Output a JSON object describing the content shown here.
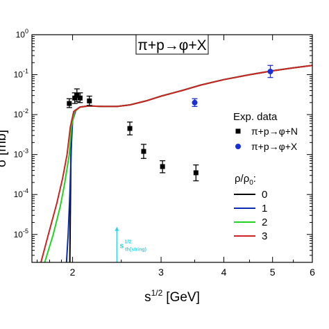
{
  "chart_data": {
    "type": "line",
    "title": "π+p→φ+X",
    "xlabel": "s",
    "xlabel_sup": "1/2",
    "xlabel_unit": "[GeV]",
    "ylabel": "σ [mb]",
    "x_scale": "log",
    "y_scale": "log",
    "xlim": [
      1.66,
      6.0
    ],
    "ylim": [
      2e-06,
      1.0
    ],
    "x_ticks": [
      {
        "value": 2,
        "label": "2"
      },
      {
        "value": 3,
        "label": "3"
      },
      {
        "value": 4,
        "label": "4"
      },
      {
        "value": 5,
        "label": "5"
      },
      {
        "value": 6,
        "label": "6"
      }
    ],
    "y_ticks": [
      {
        "value": 1e-05,
        "base": "10",
        "exp": "-5"
      },
      {
        "value": 0.0001,
        "base": "10",
        "exp": "-4"
      },
      {
        "value": 0.001,
        "base": "10",
        "exp": "-3"
      },
      {
        "value": 0.01,
        "base": "10",
        "exp": "-2"
      },
      {
        "value": 0.1,
        "base": "10",
        "exp": "-1"
      },
      {
        "value": 1,
        "base": "10",
        "exp": "0"
      }
    ],
    "grid": false,
    "legend_placement": "right",
    "legend_data_title": "Exp. data",
    "legend_model_title": "ρ/ρ",
    "legend_model_title_sub": "0",
    "legend_model_title_suffix": ":",
    "annotation": {
      "text": "s",
      "sup": "1/2",
      "sub": "th(string)",
      "x": 2.45,
      "y_from": 2e-06,
      "y_to": 1.5e-05,
      "color": "#2fd3e0"
    },
    "series": [
      {
        "name": "0",
        "color": "#000000",
        "points": [
          [
            1.975,
            2e-06
          ],
          [
            1.985,
            0.001
          ],
          [
            1.995,
            0.006
          ],
          [
            2.02,
            0.0125
          ],
          [
            2.07,
            0.0155
          ],
          [
            2.15,
            0.0165
          ],
          [
            2.3,
            0.016
          ],
          [
            2.45,
            0.016
          ],
          [
            2.6,
            0.0175
          ],
          [
            2.8,
            0.022
          ],
          [
            3.0,
            0.029
          ],
          [
            3.3,
            0.04
          ],
          [
            3.6,
            0.055
          ],
          [
            4.0,
            0.075
          ],
          [
            4.5,
            0.1
          ],
          [
            5.0,
            0.125
          ],
          [
            5.5,
            0.148
          ],
          [
            6.0,
            0.17
          ]
        ]
      },
      {
        "name": "1",
        "color": "#0a2ab0",
        "points": [
          [
            1.945,
            2e-06
          ],
          [
            1.96,
            1e-05
          ],
          [
            1.975,
            0.0001
          ],
          [
            1.99,
            0.002
          ],
          [
            2.0,
            0.007
          ],
          [
            2.03,
            0.013
          ],
          [
            2.07,
            0.0155
          ],
          [
            2.15,
            0.0165
          ],
          [
            2.3,
            0.016
          ],
          [
            2.45,
            0.016
          ],
          [
            2.6,
            0.0175
          ],
          [
            2.8,
            0.022
          ],
          [
            3.0,
            0.029
          ],
          [
            3.3,
            0.04
          ],
          [
            3.6,
            0.055
          ],
          [
            4.0,
            0.075
          ],
          [
            4.5,
            0.1
          ],
          [
            5.0,
            0.125
          ],
          [
            5.5,
            0.148
          ],
          [
            6.0,
            0.17
          ]
        ]
      },
      {
        "name": "2",
        "color": "#22d422",
        "points": [
          [
            1.76,
            2e-06
          ],
          [
            1.83,
            1e-05
          ],
          [
            1.89,
            5e-05
          ],
          [
            1.93,
            0.0002
          ],
          [
            1.97,
            0.001
          ],
          [
            1.99,
            0.005
          ],
          [
            2.02,
            0.012
          ],
          [
            2.07,
            0.0155
          ],
          [
            2.15,
            0.0165
          ],
          [
            2.3,
            0.016
          ],
          [
            2.45,
            0.016
          ],
          [
            2.6,
            0.0175
          ],
          [
            2.8,
            0.022
          ],
          [
            3.0,
            0.029
          ],
          [
            3.3,
            0.04
          ],
          [
            3.6,
            0.055
          ],
          [
            4.0,
            0.075
          ],
          [
            4.5,
            0.1
          ],
          [
            5.0,
            0.125
          ],
          [
            5.5,
            0.148
          ],
          [
            6.0,
            0.17
          ]
        ]
      },
      {
        "name": "3",
        "color": "#cc2222",
        "points": [
          [
            1.73,
            2e-06
          ],
          [
            1.79,
            1e-05
          ],
          [
            1.86,
            6e-05
          ],
          [
            1.91,
            0.00025
          ],
          [
            1.95,
            0.001
          ],
          [
            1.98,
            0.005
          ],
          [
            2.01,
            0.012
          ],
          [
            2.07,
            0.0155
          ],
          [
            2.15,
            0.0165
          ],
          [
            2.3,
            0.016
          ],
          [
            2.45,
            0.016
          ],
          [
            2.6,
            0.0175
          ],
          [
            2.8,
            0.022
          ],
          [
            3.0,
            0.029
          ],
          [
            3.3,
            0.04
          ],
          [
            3.6,
            0.055
          ],
          [
            4.0,
            0.075
          ],
          [
            4.5,
            0.1
          ],
          [
            5.0,
            0.125
          ],
          [
            5.5,
            0.148
          ],
          [
            6.0,
            0.17
          ]
        ]
      }
    ],
    "data_sets": [
      {
        "name": "π+p→φ+N",
        "marker": "square",
        "color": "#000000",
        "points": [
          {
            "x": 1.97,
            "y": 0.019,
            "lo": 0.015,
            "hi": 0.025
          },
          {
            "x": 2.02,
            "y": 0.026,
            "lo": 0.019,
            "hi": 0.035
          },
          {
            "x": 2.04,
            "y": 0.03,
            "lo": 0.021,
            "hi": 0.044
          },
          {
            "x": 2.07,
            "y": 0.026,
            "lo": 0.02,
            "hi": 0.035
          },
          {
            "x": 2.16,
            "y": 0.022,
            "lo": 0.017,
            "hi": 0.029
          },
          {
            "x": 2.6,
            "y": 0.0045,
            "lo": 0.0031,
            "hi": 0.0065
          },
          {
            "x": 2.77,
            "y": 0.0012,
            "lo": 0.0008,
            "hi": 0.0018
          },
          {
            "x": 3.02,
            "y": 0.0005,
            "lo": 0.00035,
            "hi": 0.0007
          },
          {
            "x": 3.52,
            "y": 0.00035,
            "lo": 0.00022,
            "hi": 0.00055
          }
        ]
      },
      {
        "name": "π+p→φ+X",
        "marker": "circle",
        "color": "#1a2fd6",
        "points": [
          {
            "x": 3.5,
            "y": 0.02,
            "lo": 0.016,
            "hi": 0.025
          },
          {
            "x": 4.95,
            "y": 0.12,
            "lo": 0.085,
            "hi": 0.17
          }
        ]
      }
    ]
  }
}
